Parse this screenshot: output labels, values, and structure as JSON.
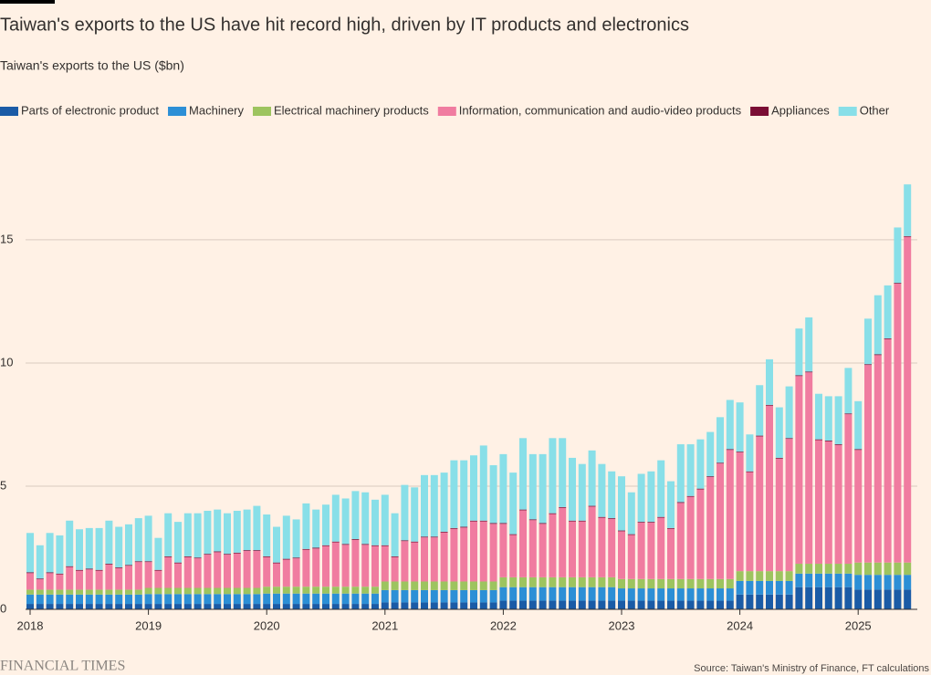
{
  "chart_data": {
    "type": "stacked_bar",
    "title": "Taiwan's exports to the US have hit record high, driven by IT products and electronics",
    "subtitle": "Taiwan's exports to the US ($bn)",
    "source": "Source: Taiwan's Ministry of Finance, FT calculations",
    "brand": "FINANCIAL TIMES",
    "categories": [
      "2018",
      null,
      null,
      null,
      null,
      null,
      null,
      null,
      null,
      null,
      null,
      null,
      "2019",
      null,
      null,
      null,
      null,
      null,
      null,
      null,
      null,
      null,
      null,
      null,
      "2020",
      null,
      null,
      null,
      null,
      null,
      null,
      null,
      null,
      null,
      null,
      null,
      "2021",
      null,
      null,
      null,
      null,
      null,
      null,
      null,
      null,
      null,
      null,
      null,
      "2022",
      null,
      null,
      null,
      null,
      null,
      null,
      null,
      null,
      null,
      null,
      null,
      "2023",
      null,
      null,
      null,
      null,
      null,
      null,
      null,
      null,
      null,
      null,
      null,
      "2024",
      null,
      null,
      null,
      null,
      null,
      null,
      null,
      null,
      null,
      null,
      null,
      "2025",
      null,
      null,
      null,
      null,
      null
    ],
    "ylim": [
      0,
      17.7
    ],
    "yticks": [
      0,
      5,
      10,
      15
    ],
    "grid": true,
    "legend": "top-left",
    "series": [
      {
        "name": "Parts of electronic product",
        "color": "#1a5ba6",
        "values": [
          0.22,
          0.22,
          0.22,
          0.22,
          0.22,
          0.22,
          0.22,
          0.22,
          0.22,
          0.22,
          0.22,
          0.22,
          0.22,
          0.22,
          0.22,
          0.22,
          0.22,
          0.22,
          0.22,
          0.22,
          0.22,
          0.22,
          0.22,
          0.22,
          0.22,
          0.22,
          0.22,
          0.22,
          0.22,
          0.22,
          0.22,
          0.22,
          0.22,
          0.22,
          0.22,
          0.22,
          0.28,
          0.28,
          0.28,
          0.28,
          0.28,
          0.28,
          0.28,
          0.28,
          0.28,
          0.28,
          0.28,
          0.28,
          0.35,
          0.35,
          0.35,
          0.35,
          0.35,
          0.35,
          0.35,
          0.35,
          0.35,
          0.35,
          0.35,
          0.35,
          0.35,
          0.35,
          0.35,
          0.35,
          0.35,
          0.35,
          0.35,
          0.35,
          0.35,
          0.35,
          0.35,
          0.35,
          0.6,
          0.6,
          0.6,
          0.6,
          0.6,
          0.6,
          0.9,
          0.9,
          0.9,
          0.9,
          0.9,
          0.9,
          0.8,
          0.8,
          0.8,
          0.8,
          0.8,
          0.8
        ]
      },
      {
        "name": "Machinery",
        "color": "#2c8fd6",
        "values": [
          0.38,
          0.38,
          0.38,
          0.38,
          0.38,
          0.38,
          0.38,
          0.38,
          0.38,
          0.38,
          0.38,
          0.38,
          0.4,
          0.4,
          0.4,
          0.4,
          0.4,
          0.4,
          0.4,
          0.4,
          0.4,
          0.4,
          0.4,
          0.4,
          0.42,
          0.42,
          0.42,
          0.42,
          0.42,
          0.42,
          0.42,
          0.42,
          0.42,
          0.42,
          0.42,
          0.42,
          0.5,
          0.5,
          0.5,
          0.5,
          0.5,
          0.5,
          0.5,
          0.5,
          0.5,
          0.5,
          0.5,
          0.5,
          0.55,
          0.55,
          0.55,
          0.55,
          0.55,
          0.55,
          0.55,
          0.55,
          0.55,
          0.55,
          0.55,
          0.55,
          0.5,
          0.5,
          0.5,
          0.5,
          0.5,
          0.5,
          0.5,
          0.5,
          0.5,
          0.5,
          0.5,
          0.5,
          0.55,
          0.55,
          0.55,
          0.55,
          0.55,
          0.55,
          0.55,
          0.55,
          0.55,
          0.55,
          0.55,
          0.55,
          0.6,
          0.6,
          0.6,
          0.6,
          0.6,
          0.6
        ]
      },
      {
        "name": "Electrical machinery products",
        "color": "#9dc45f",
        "values": [
          0.2,
          0.2,
          0.2,
          0.2,
          0.2,
          0.2,
          0.2,
          0.2,
          0.2,
          0.2,
          0.2,
          0.2,
          0.25,
          0.25,
          0.25,
          0.25,
          0.25,
          0.25,
          0.25,
          0.25,
          0.25,
          0.25,
          0.25,
          0.25,
          0.28,
          0.28,
          0.28,
          0.28,
          0.28,
          0.28,
          0.28,
          0.28,
          0.28,
          0.28,
          0.28,
          0.28,
          0.35,
          0.35,
          0.35,
          0.35,
          0.35,
          0.35,
          0.35,
          0.35,
          0.35,
          0.35,
          0.35,
          0.35,
          0.4,
          0.4,
          0.4,
          0.4,
          0.4,
          0.4,
          0.4,
          0.4,
          0.4,
          0.4,
          0.4,
          0.4,
          0.38,
          0.38,
          0.38,
          0.38,
          0.38,
          0.38,
          0.38,
          0.38,
          0.38,
          0.38,
          0.38,
          0.38,
          0.4,
          0.4,
          0.4,
          0.4,
          0.4,
          0.4,
          0.4,
          0.4,
          0.4,
          0.4,
          0.4,
          0.4,
          0.5,
          0.5,
          0.5,
          0.5,
          0.5,
          0.5
        ]
      },
      {
        "name": "Information, communication and audio-video products",
        "color": "#f07ca0",
        "values": [
          0.67,
          0.42,
          0.67,
          0.62,
          0.92,
          0.77,
          0.82,
          0.77,
          1.02,
          0.87,
          0.97,
          1.12,
          1.05,
          0.7,
          1.25,
          1.0,
          1.25,
          1.2,
          1.35,
          1.45,
          1.35,
          1.4,
          1.5,
          1.5,
          1.2,
          0.95,
          1.1,
          1.15,
          1.5,
          1.55,
          1.65,
          1.8,
          1.7,
          1.9,
          1.7,
          1.65,
          1.44,
          0.99,
          1.64,
          1.59,
          1.79,
          1.79,
          1.99,
          2.14,
          2.19,
          2.44,
          2.44,
          2.34,
          2.17,
          1.72,
          2.72,
          2.32,
          2.17,
          2.57,
          2.82,
          2.27,
          2.27,
          2.87,
          2.42,
          2.37,
          1.94,
          1.79,
          2.29,
          2.29,
          2.49,
          2.04,
          3.09,
          3.34,
          3.64,
          4.14,
          4.69,
          5.24,
          4.82,
          4.02,
          5.47,
          6.72,
          4.57,
          5.37,
          7.62,
          7.77,
          5.02,
          4.97,
          4.82,
          6.07,
          4.57,
          8.02,
          8.42,
          9.07,
          11.32,
          13.22
        ]
      },
      {
        "name": "Appliances",
        "color": "#7a0d34",
        "values": [
          0.03,
          0.03,
          0.03,
          0.03,
          0.03,
          0.03,
          0.03,
          0.03,
          0.03,
          0.03,
          0.03,
          0.03,
          0.03,
          0.03,
          0.03,
          0.03,
          0.03,
          0.03,
          0.03,
          0.03,
          0.03,
          0.03,
          0.03,
          0.03,
          0.03,
          0.03,
          0.03,
          0.03,
          0.03,
          0.03,
          0.03,
          0.03,
          0.03,
          0.03,
          0.03,
          0.03,
          0.03,
          0.03,
          0.03,
          0.03,
          0.03,
          0.03,
          0.03,
          0.03,
          0.03,
          0.03,
          0.03,
          0.03,
          0.03,
          0.03,
          0.03,
          0.03,
          0.03,
          0.03,
          0.03,
          0.03,
          0.03,
          0.03,
          0.03,
          0.03,
          0.03,
          0.03,
          0.03,
          0.03,
          0.03,
          0.03,
          0.03,
          0.03,
          0.03,
          0.03,
          0.03,
          0.03,
          0.03,
          0.03,
          0.03,
          0.03,
          0.03,
          0.03,
          0.03,
          0.03,
          0.03,
          0.03,
          0.03,
          0.03,
          0.03,
          0.03,
          0.03,
          0.03,
          0.03,
          0.03
        ]
      },
      {
        "name": "Other",
        "color": "#88dfe8",
        "values": [
          1.6,
          1.35,
          1.6,
          1.55,
          1.85,
          1.65,
          1.65,
          1.7,
          1.75,
          1.65,
          1.65,
          1.75,
          1.85,
          1.3,
          1.75,
          1.65,
          1.75,
          1.8,
          1.75,
          1.7,
          1.65,
          1.7,
          1.65,
          1.8,
          1.7,
          1.45,
          1.75,
          1.55,
          1.85,
          1.55,
          1.65,
          1.9,
          1.85,
          1.95,
          2.1,
          1.85,
          2.05,
          1.75,
          2.25,
          2.2,
          2.5,
          2.5,
          2.4,
          2.75,
          2.7,
          2.65,
          3.05,
          2.35,
          2.8,
          2.5,
          2.9,
          2.65,
          2.8,
          3.05,
          2.8,
          2.55,
          2.3,
          2.25,
          2.15,
          1.9,
          2.2,
          1.7,
          1.95,
          2.05,
          2.3,
          1.9,
          2.35,
          2.1,
          2.0,
          1.8,
          1.85,
          2.0,
          2.0,
          1.5,
          2.05,
          1.85,
          2.05,
          2.1,
          1.9,
          2.2,
          1.85,
          1.8,
          1.95,
          1.85,
          1.95,
          1.85,
          2.4,
          2.15,
          2.25,
          2.1
        ]
      }
    ]
  }
}
